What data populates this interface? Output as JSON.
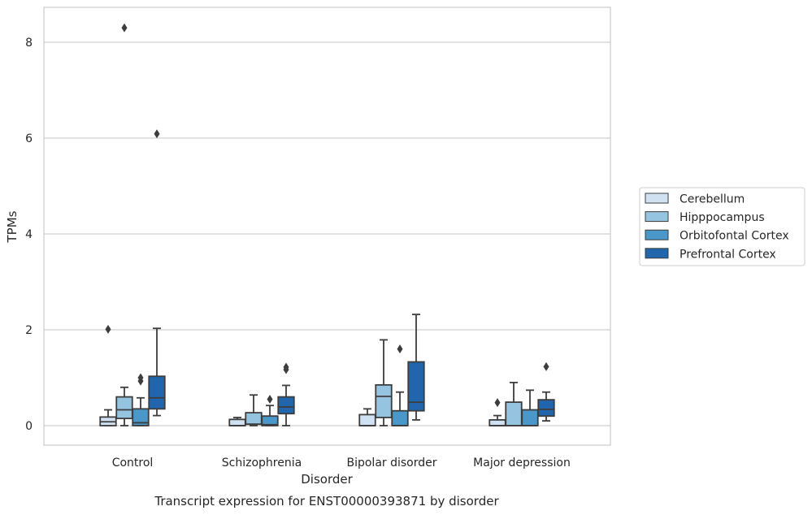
{
  "chart_data": {
    "type": "box",
    "title": "",
    "caption": "Transcript expression for ENST00000393871 by disorder",
    "xlabel": "Disorder",
    "ylabel": "TPMs",
    "ylim": [
      -0.4,
      8.75
    ],
    "yticks": [
      0,
      2,
      4,
      6,
      8
    ],
    "grid": true,
    "legend_position": "right-center",
    "categories": [
      "Control",
      "Schizophrenia",
      "Bipolar disorder",
      "Major depression"
    ],
    "series": [
      {
        "name": "Cerebellum",
        "color": "#d0e1f2",
        "boxes": [
          {
            "whisker_low": 0.0,
            "q1": 0.0,
            "median": 0.08,
            "q3": 0.18,
            "whisker_high": 0.33,
            "outliers": [
              2.01
            ]
          },
          {
            "whisker_low": 0.0,
            "q1": 0.0,
            "median": 0.0,
            "q3": 0.13,
            "whisker_high": 0.17,
            "outliers": []
          },
          {
            "whisker_low": 0.0,
            "q1": 0.0,
            "median": 0.0,
            "q3": 0.23,
            "whisker_high": 0.35,
            "outliers": []
          },
          {
            "whisker_low": 0.0,
            "q1": 0.0,
            "median": 0.0,
            "q3": 0.12,
            "whisker_high": 0.21,
            "outliers": [
              0.48
            ]
          }
        ]
      },
      {
        "name": "Hipppocampus",
        "color": "#94c4df",
        "boxes": [
          {
            "whisker_low": 0.0,
            "q1": 0.15,
            "median": 0.33,
            "q3": 0.6,
            "whisker_high": 0.8,
            "outliers": [
              8.3
            ]
          },
          {
            "whisker_low": 0.0,
            "q1": 0.03,
            "median": 0.03,
            "q3": 0.27,
            "whisker_high": 0.64,
            "outliers": []
          },
          {
            "whisker_low": 0.0,
            "q1": 0.17,
            "median": 0.61,
            "q3": 0.85,
            "whisker_high": 1.79,
            "outliers": []
          },
          {
            "whisker_low": 0.0,
            "q1": 0.0,
            "median": 0.0,
            "q3": 0.49,
            "whisker_high": 0.9,
            "outliers": []
          }
        ]
      },
      {
        "name": "Orbitofontal Cortex",
        "color": "#4a98c9",
        "boxes": [
          {
            "whisker_low": 0.0,
            "q1": 0.0,
            "median": 0.06,
            "q3": 0.35,
            "whisker_high": 0.58,
            "outliers": [
              0.93,
              1.0
            ]
          },
          {
            "whisker_low": 0.0,
            "q1": 0.0,
            "median": 0.02,
            "q3": 0.2,
            "whisker_high": 0.42,
            "outliers": [
              0.55
            ]
          },
          {
            "whisker_low": 0.0,
            "q1": 0.0,
            "median": 0.0,
            "q3": 0.31,
            "whisker_high": 0.7,
            "outliers": [
              1.6
            ]
          },
          {
            "whisker_low": 0.0,
            "q1": 0.0,
            "median": 0.0,
            "q3": 0.33,
            "whisker_high": 0.74,
            "outliers": []
          }
        ]
      },
      {
        "name": "Prefrontal Cortex",
        "color": "#2166ac",
        "boxes": [
          {
            "whisker_low": 0.21,
            "q1": 0.35,
            "median": 0.58,
            "q3": 1.03,
            "whisker_high": 2.03,
            "outliers": [
              6.09
            ]
          },
          {
            "whisker_low": 0.0,
            "q1": 0.25,
            "median": 0.39,
            "q3": 0.6,
            "whisker_high": 0.84,
            "outliers": [
              1.17,
              1.22
            ]
          },
          {
            "whisker_low": 0.12,
            "q1": 0.31,
            "median": 0.49,
            "q3": 1.33,
            "whisker_high": 2.32,
            "outliers": []
          },
          {
            "whisker_low": 0.1,
            "q1": 0.2,
            "median": 0.34,
            "q3": 0.54,
            "whisker_high": 0.7,
            "outliers": [
              1.23
            ]
          }
        ]
      }
    ]
  }
}
